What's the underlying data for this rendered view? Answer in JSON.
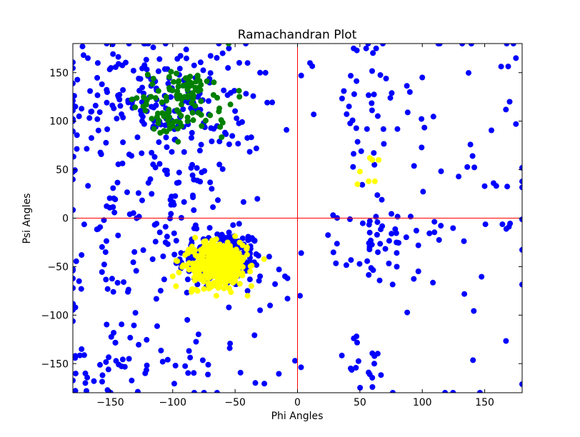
{
  "chart_data": {
    "type": "scatter",
    "title": "Ramachandran Plot",
    "xlabel": "Phi Angles",
    "ylabel": "Psi Angles",
    "xlim": [
      -180,
      180
    ],
    "ylim": [
      -180,
      180
    ],
    "xticks": [
      -150,
      -100,
      -50,
      0,
      50,
      100,
      150
    ],
    "yticks": [
      -150,
      -100,
      -50,
      0,
      50,
      100,
      150
    ],
    "grid": false,
    "legend": "none",
    "reference_lines": {
      "x": 0,
      "y": 0,
      "color": "#ff0000"
    },
    "colors": {
      "general": "#0000ff",
      "beta": "#008000",
      "helix": "#ffff00"
    },
    "series": [
      {
        "color": "#0000ff",
        "clusters": [
          {
            "center": [
              -62,
              -42
            ],
            "spread": [
              17,
              15
            ],
            "count": 240
          },
          {
            "center": [
              -115,
              125
            ],
            "spread": [
              38,
              30
            ],
            "count": 170
          },
          {
            "center": [
              -85,
              30
            ],
            "spread": [
              30,
              45
            ],
            "count": 90
          },
          {
            "center": [
              -150,
              -50
            ],
            "spread": [
              22,
              55
            ],
            "count": 45
          },
          {
            "center": [
              -140,
              60
            ],
            "spread": [
              25,
              70
            ],
            "count": 45
          },
          {
            "center": [
              -150,
              -150
            ],
            "spread": [
              20,
              18
            ],
            "count": 25
          },
          {
            "center": [
              -70,
              -150
            ],
            "spread": [
              25,
              20
            ],
            "count": 25
          },
          {
            "center": [
              60,
              -30
            ],
            "spread": [
              15,
              20
            ],
            "count": 45
          },
          {
            "center": [
              55,
              100
            ],
            "spread": [
              18,
              50
            ],
            "count": 40
          },
          {
            "center": [
              55,
              -150
            ],
            "spread": [
              15,
              15
            ],
            "count": 18
          },
          {
            "center": [
              160,
              30
            ],
            "spread": [
              20,
              110
            ],
            "count": 35
          },
          {
            "center": [
              100,
              -20
            ],
            "spread": [
              15,
              90
            ],
            "count": 25
          }
        ],
        "points": [
          [
            -60,
            170
          ],
          [
            -55,
            175
          ],
          [
            -40,
            160
          ],
          [
            -30,
            150
          ],
          [
            10,
            160
          ],
          [
            13,
            107
          ],
          [
            3,
            147
          ],
          [
            -2,
            -147
          ],
          [
            2,
            -80
          ],
          [
            3,
            -36
          ],
          [
            -8,
            -62
          ],
          [
            -8,
            -83
          ],
          [
            -10,
            -60
          ],
          [
            55,
            175
          ],
          [
            63,
            175
          ],
          [
            45,
            175
          ],
          [
            100,
            145
          ],
          [
            90,
            130
          ],
          [
            132,
            180
          ],
          [
            173,
            180
          ],
          [
            175,
            165
          ],
          [
            175,
            97
          ],
          [
            170,
            120
          ],
          [
            167,
            112
          ],
          [
            -178,
            -142
          ],
          [
            -178,
            -178
          ],
          [
            -173,
            -135
          ],
          [
            -178,
            -92
          ],
          [
            -175,
            -65
          ],
          [
            -173,
            -38
          ],
          [
            -175,
            105
          ],
          [
            -178,
            115
          ],
          [
            -165,
            110
          ],
          [
            -168,
            165
          ],
          [
            -160,
            160
          ],
          [
            -108,
            -148
          ],
          [
            -135,
            -145
          ],
          [
            -122,
            -160
          ],
          [
            -104,
            -146
          ],
          [
            -128,
            -179
          ],
          [
            -150,
            -180
          ],
          [
            -170,
            -170
          ],
          [
            -78,
            -30
          ],
          [
            -45,
            -30
          ],
          [
            -42,
            -50
          ],
          [
            -30,
            -60
          ],
          [
            -40,
            -75
          ],
          [
            -55,
            -92
          ],
          [
            -30,
            -95
          ],
          [
            -18,
            -68
          ],
          [
            -22,
            -90
          ]
        ]
      },
      {
        "color": "#008000",
        "clusters": [
          {
            "center": [
              -90,
              135
            ],
            "spread": [
              10,
              9
            ],
            "count": 40
          },
          {
            "center": [
              -105,
              105
            ],
            "spread": [
              10,
              10
            ],
            "count": 25
          },
          {
            "center": [
              -80,
              120
            ],
            "spread": [
              15,
              18
            ],
            "count": 30
          },
          {
            "center": [
              -120,
              125
            ],
            "spread": [
              8,
              10
            ],
            "count": 12
          }
        ],
        "points": [
          [
            -120,
            148
          ],
          [
            -88,
            100
          ],
          [
            -93,
            95
          ],
          [
            -100,
            95
          ],
          [
            -110,
            88
          ],
          [
            -115,
            92
          ],
          [
            -107,
            90
          ],
          [
            -67,
            140
          ],
          [
            -63,
            110
          ],
          [
            -70,
            106
          ],
          [
            -62,
            94
          ],
          [
            -80,
            147
          ],
          [
            -86,
            146
          ]
        ]
      },
      {
        "color": "#ffff00",
        "clusters": [
          {
            "center": [
              -62,
              -47
            ],
            "spread": [
              11,
              11
            ],
            "count": 420
          }
        ],
        "points": [
          [
            -100,
            -60
          ],
          [
            -95,
            -56
          ],
          [
            -97,
            -44
          ],
          [
            -90,
            -38
          ],
          [
            -75,
            -25
          ],
          [
            -82,
            -20
          ],
          [
            -85,
            -76
          ],
          [
            -80,
            -75
          ],
          [
            -56,
            -25
          ],
          [
            -44,
            -28
          ],
          [
            -38,
            -55
          ],
          [
            -37,
            -70
          ],
          [
            -40,
            -80
          ],
          [
            -65,
            -80
          ],
          [
            -75,
            -73
          ],
          [
            50,
            48
          ],
          [
            65,
            60
          ],
          [
            60,
            60
          ],
          [
            57,
            38
          ],
          [
            62,
            38
          ],
          [
            48,
            35
          ],
          [
            58,
            62
          ]
        ]
      }
    ]
  }
}
